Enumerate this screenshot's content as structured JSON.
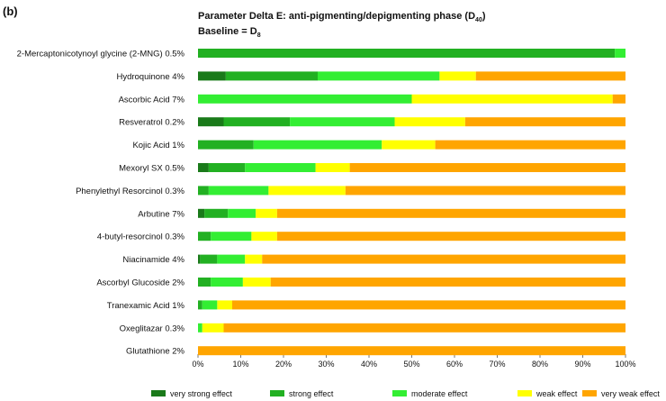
{
  "panel_label": "(b)",
  "chart_data": {
    "type": "bar",
    "orientation": "horizontal",
    "stacked": true,
    "title_line1": "Parameter Delta E: anti-pigmenting/depigmenting phase (D",
    "title_line1_sub": "40",
    "title_line1_end": ")",
    "title_line2": "Baseline = D",
    "title_line2_sub": "8",
    "categories": [
      "2-Mercaptonicotynoyl glycine (2-MNG) 0.5%",
      "Hydroquinone 4%",
      "Ascorbic Acid 7%",
      "Resveratrol 0.2%",
      "Kojic Acid 1%",
      "Mexoryl SX 0.5%",
      "Phenylethyl Resorcinol 0.3%",
      "Arbutine 7%",
      "4-butyl-resorcinol 0.3%",
      "Niacinamide 4%",
      "Ascorbyl Glucoside 2%",
      "Tranexamic Acid 1%",
      "Oxeglitazar 0.3%",
      "Glutathione 2%"
    ],
    "series": [
      {
        "name": "very strong effect",
        "color": "#1a7a1a",
        "values": [
          0,
          6.5,
          0,
          6,
          0,
          2.5,
          0,
          1.5,
          0,
          0.5,
          0,
          0,
          0,
          0
        ]
      },
      {
        "name": "strong effect",
        "color": "#22b022",
        "values": [
          97.5,
          21.5,
          0,
          15.5,
          13,
          8.5,
          2.5,
          5.5,
          3,
          4,
          3,
          1,
          0,
          0
        ]
      },
      {
        "name": "moderate effect",
        "color": "#33ee33",
        "values": [
          2.5,
          28.5,
          50,
          24.5,
          30,
          16.5,
          14,
          6.5,
          9.5,
          6.5,
          7.5,
          3.5,
          1,
          0
        ]
      },
      {
        "name": "weak effect",
        "color": "#ffff00",
        "values": [
          0,
          8.5,
          47,
          16.5,
          12.5,
          8,
          18,
          5,
          6,
          4,
          6.5,
          3.5,
          5,
          0
        ]
      },
      {
        "name": "very weak effect",
        "color": "#ffa500",
        "values": [
          0,
          35,
          3,
          37.5,
          44.5,
          64.5,
          65.5,
          81.5,
          81.5,
          85,
          83,
          92,
          94,
          100
        ]
      }
    ],
    "x_ticks": [
      "0%",
      "10%",
      "20%",
      "30%",
      "40%",
      "50%",
      "60%",
      "70%",
      "80%",
      "90%",
      "100%"
    ],
    "xlim": [
      0,
      100
    ],
    "legend": [
      "very strong effect",
      "strong effect",
      "moderate effect",
      "weak effect",
      "very weak effect"
    ]
  }
}
